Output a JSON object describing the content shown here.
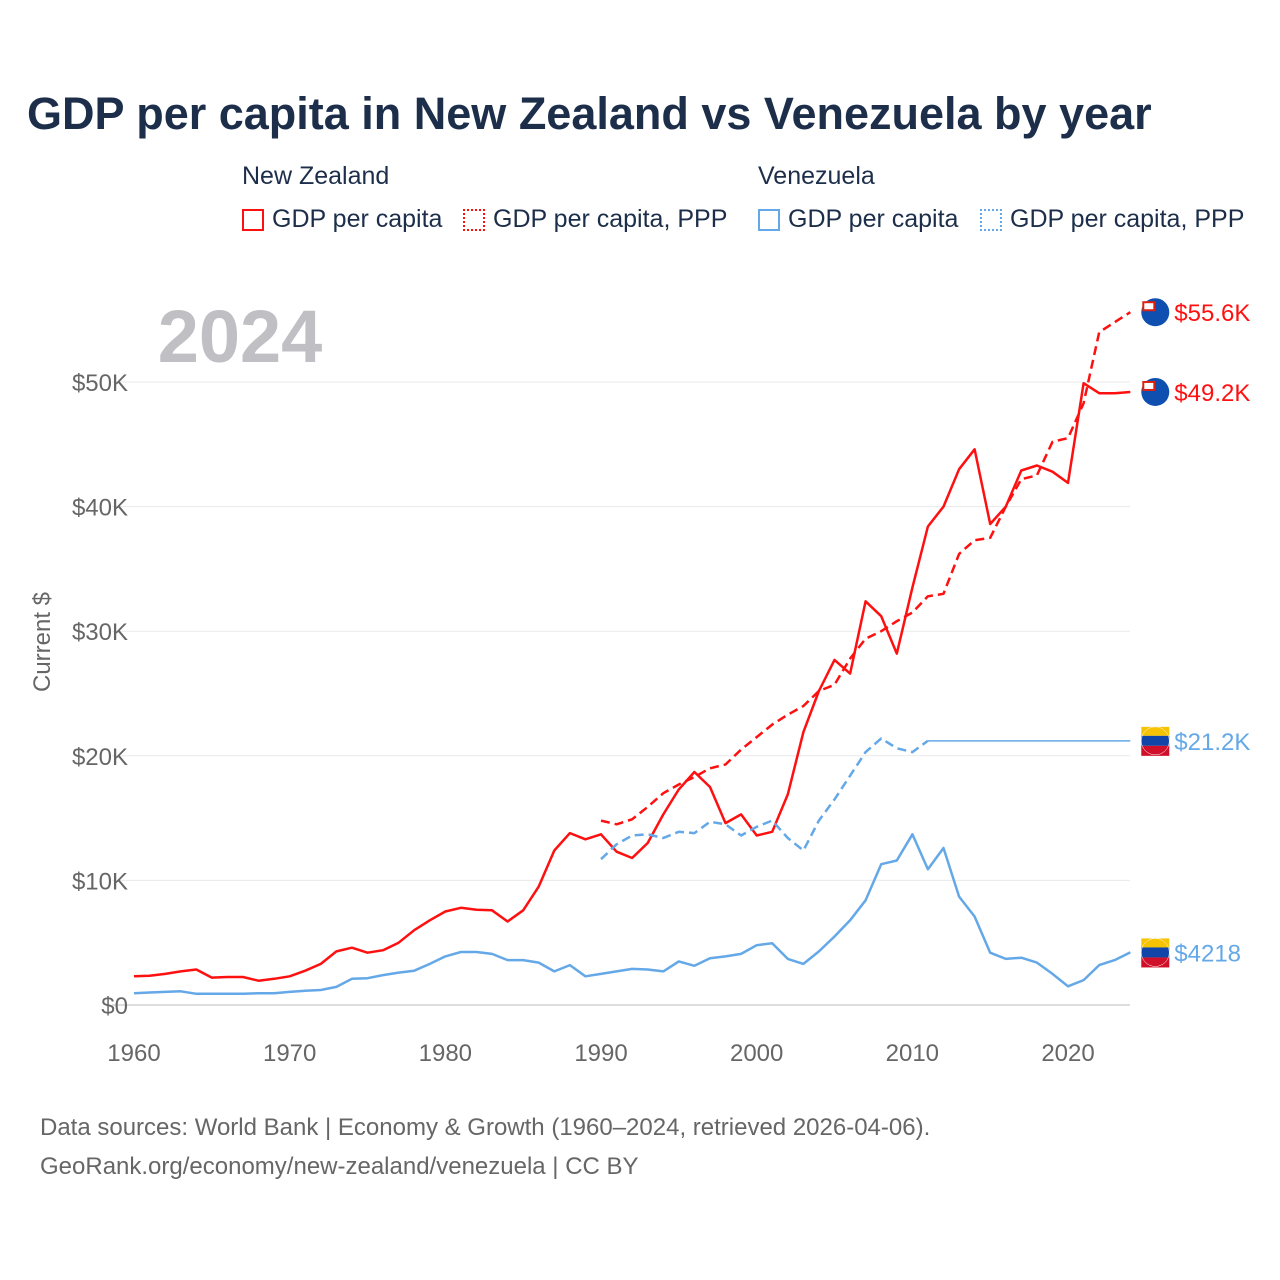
{
  "chart_data": {
    "type": "line",
    "title": "GDP per capita in New Zealand vs Venezuela by year",
    "ylabel": "Current $",
    "xlabel": "",
    "year_label": "2024",
    "xlim": [
      1960,
      2024
    ],
    "ylim": [
      0,
      56000
    ],
    "x_ticks": [
      1960,
      1970,
      1980,
      1990,
      2000,
      2010,
      2020
    ],
    "y_ticks": [
      0,
      10000,
      20000,
      30000,
      40000,
      50000
    ],
    "y_tick_labels": [
      "$0",
      "$10K",
      "$20K",
      "$30K",
      "$40K",
      "$50K"
    ],
    "grid": true,
    "legend": {
      "groups": [
        {
          "name": "New Zealand",
          "items": [
            "GDP per capita",
            "GDP per capita, PPP"
          ]
        },
        {
          "name": "Venezuela",
          "items": [
            "GDP per capita",
            "GDP per capita, PPP"
          ]
        }
      ],
      "placement": "top"
    },
    "colors": {
      "nz": "#ff1010",
      "ve": "#64a8e8"
    },
    "series": [
      {
        "name": "New Zealand GDP per capita",
        "country": "nz",
        "style": "solid",
        "start": 1960,
        "end_label": "$49.2K",
        "values": [
          2.3,
          2.35,
          2.5,
          2.7,
          2.85,
          2.2,
          2.25,
          2.25,
          1.95,
          2.1,
          2.3,
          2.75,
          3.3,
          4.3,
          4.6,
          4.2,
          4.4,
          5.0,
          6.0,
          6.8,
          7.5,
          7.8,
          7.65,
          7.6,
          6.7,
          7.6,
          9.5,
          12.4,
          13.8,
          13.3,
          13.7,
          12.3,
          11.8,
          13.0,
          15.3,
          17.3,
          18.7,
          17.5,
          14.6,
          15.3,
          13.6,
          13.9,
          16.9,
          21.9,
          25.2,
          27.7,
          26.6,
          32.4,
          31.2,
          28.2,
          33.5,
          38.4,
          40.0,
          43.0,
          44.6,
          38.6,
          40.0,
          42.9,
          43.3,
          42.8,
          41.9,
          49.9,
          49.1,
          49.1,
          49.2
        ]
      },
      {
        "name": "New Zealand GDP per capita, PPP",
        "country": "nz",
        "style": "dashed",
        "start": 1990,
        "end_label": "$55.6K",
        "values": [
          14.8,
          14.5,
          14.9,
          15.9,
          17.0,
          17.7,
          18.3,
          19.0,
          19.3,
          20.5,
          21.5,
          22.5,
          23.3,
          24.0,
          25.2,
          25.7,
          27.8,
          29.4,
          30.0,
          30.8,
          31.5,
          32.8,
          33.0,
          36.2,
          37.3,
          37.5,
          40.0,
          42.2,
          42.5,
          45.2,
          45.5,
          48.3,
          54.0,
          54.8,
          55.6
        ]
      },
      {
        "name": "Venezuela GDP per capita",
        "country": "ve",
        "style": "solid",
        "start": 1960,
        "end_label": "$4218",
        "values": [
          0.95,
          1.0,
          1.05,
          1.1,
          0.9,
          0.9,
          0.9,
          0.9,
          0.95,
          0.95,
          1.05,
          1.15,
          1.2,
          1.45,
          2.1,
          2.15,
          2.4,
          2.6,
          2.75,
          3.3,
          3.9,
          4.25,
          4.25,
          4.1,
          3.6,
          3.6,
          3.4,
          2.7,
          3.2,
          2.3,
          2.5,
          2.7,
          2.9,
          2.85,
          2.7,
          3.5,
          3.15,
          3.75,
          3.9,
          4.1,
          4.8,
          4.95,
          3.7,
          3.3,
          4.3,
          5.5,
          6.8,
          8.4,
          11.3,
          11.6,
          13.7,
          10.9,
          12.6,
          8.7,
          7.1,
          4.2,
          3.7,
          3.8,
          3.4,
          2.5,
          1.5,
          2.0,
          3.2,
          3.6,
          4.218
        ]
      },
      {
        "name": "Venezuela GDP per capita, PPP",
        "country": "ve",
        "style": "dashed",
        "start": 1990,
        "end_label": "$21.2K",
        "carried_forward_to": 2024,
        "values": [
          11.7,
          12.9,
          13.6,
          13.7,
          13.4,
          13.9,
          13.8,
          14.7,
          14.5,
          13.6,
          14.3,
          14.8,
          13.4,
          12.4,
          14.8,
          16.5,
          18.4,
          20.3,
          21.4,
          20.6,
          20.3,
          21.2
        ]
      }
    ],
    "value_unit": "thousand current US$"
  },
  "footer": {
    "line1": "Data sources: World Bank | Economy & Growth (1960–2024, retrieved 2026-04-06).",
    "line2": "GeoRank.org/economy/new-zealand/venezuela | CC BY"
  }
}
